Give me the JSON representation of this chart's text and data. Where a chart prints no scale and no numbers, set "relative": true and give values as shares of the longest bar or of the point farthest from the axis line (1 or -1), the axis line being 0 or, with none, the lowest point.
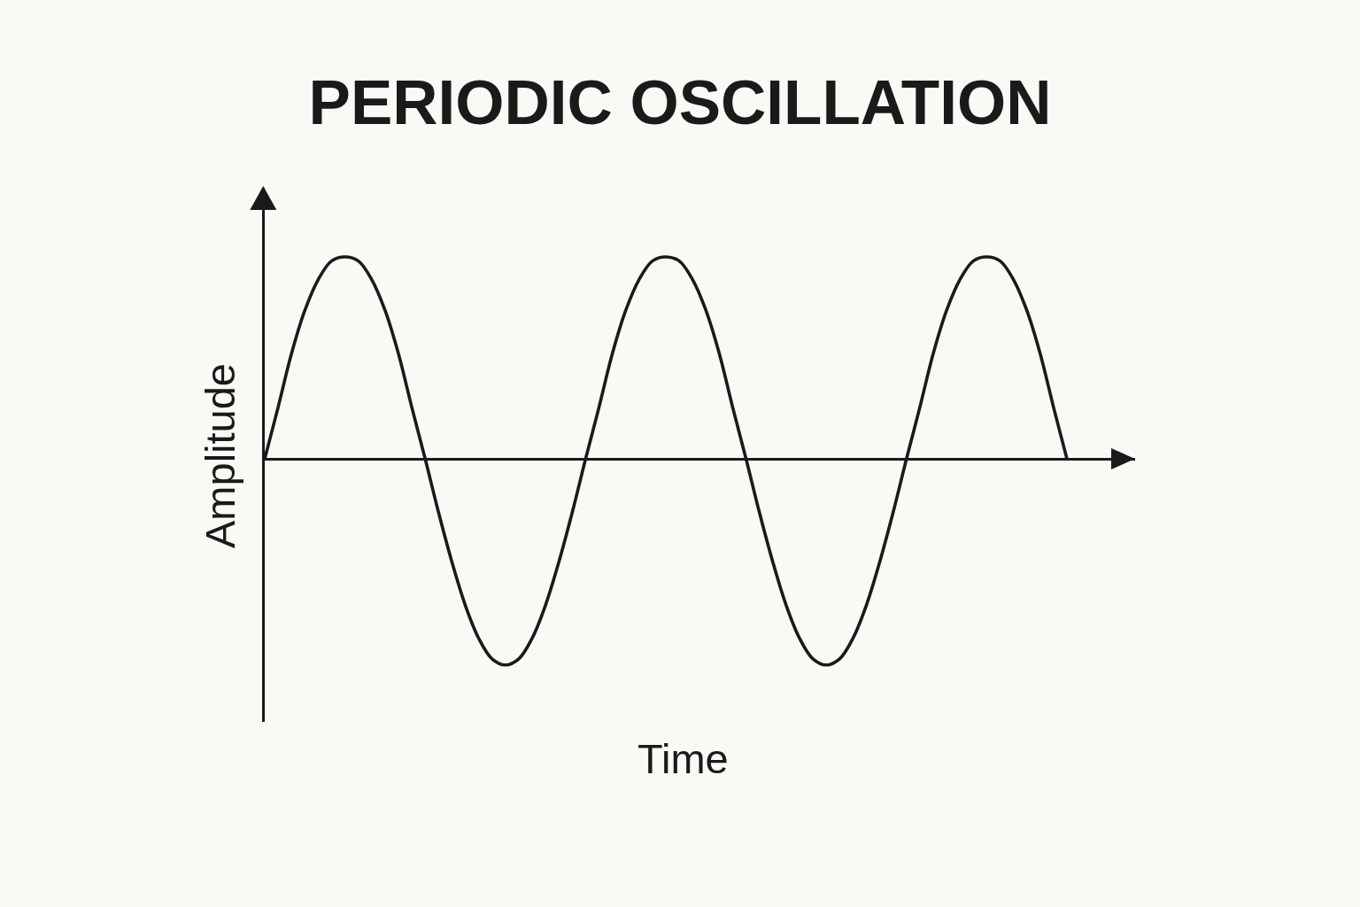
{
  "chart_data": {
    "type": "line",
    "title": "PERIODIC OSCILLATION",
    "xlabel": "Time",
    "ylabel": "Amplitude",
    "relative": true,
    "tick_labels": false,
    "marker": "none",
    "line_style": "solid",
    "categories": [
      null,
      null,
      null,
      null,
      null,
      null,
      null,
      null,
      null,
      null,
      null,
      null,
      null,
      null,
      null,
      null,
      null,
      null,
      null,
      null,
      null,
      null,
      null,
      null,
      null,
      null,
      null,
      null,
      null,
      null,
      null,
      null,
      null,
      null,
      null,
      null,
      null,
      null,
      null,
      null,
      null,
      null,
      null,
      null,
      null,
      null,
      null,
      null,
      null,
      null,
      null,
      null,
      null,
      null,
      null,
      null,
      null,
      null,
      null,
      null,
      null
    ],
    "series": [
      {
        "color": "#1a1a1a",
        "values": [
          0,
          0.25,
          0.51,
          0.72,
          0.87,
          0.96,
          0.98,
          0.96,
          0.87,
          0.72,
          0.51,
          0.25,
          0,
          -0.26,
          -0.5,
          -0.71,
          -0.87,
          -0.97,
          -1,
          -0.97,
          -0.87,
          -0.71,
          -0.5,
          -0.26,
          0,
          0.25,
          0.51,
          0.72,
          0.87,
          0.96,
          0.98,
          0.96,
          0.87,
          0.72,
          0.51,
          0.25,
          0,
          -0.26,
          -0.5,
          -0.71,
          -0.87,
          -0.97,
          -1,
          -0.97,
          -0.87,
          -0.71,
          -0.5,
          -0.26,
          0,
          0.25,
          0.51,
          0.72,
          0.87,
          0.96,
          0.98,
          0.96,
          0.87,
          0.72,
          0.51,
          0.25,
          0
        ]
      }
    ]
  }
}
